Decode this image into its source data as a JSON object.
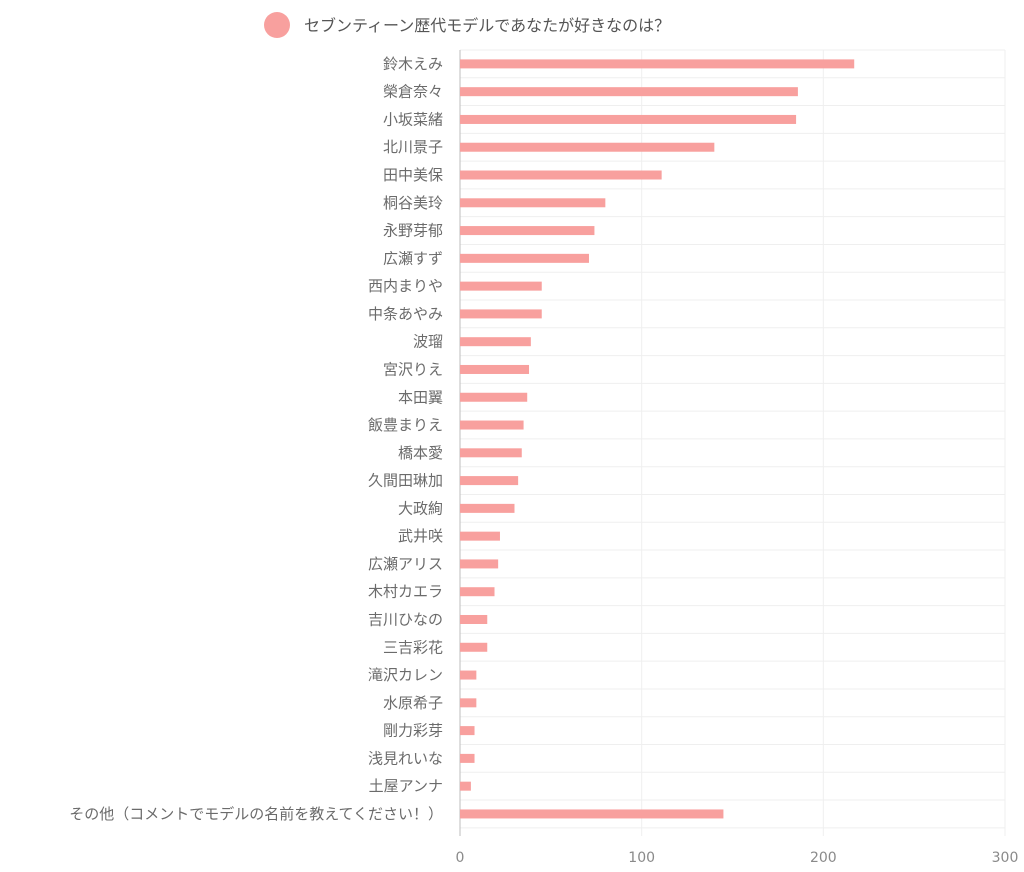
{
  "chart_data": {
    "type": "bar",
    "orientation": "horizontal",
    "series": [
      {
        "name": "セブンティーン歴代モデルであなたが好きなのは？",
        "color": "#f8a09e",
        "values": [
          217,
          186,
          185,
          140,
          111,
          80,
          74,
          71,
          45,
          45,
          39,
          38,
          37,
          35,
          34,
          32,
          30,
          22,
          21,
          19,
          15,
          15,
          9,
          9,
          8,
          8,
          6,
          145
        ]
      }
    ],
    "categories": [
      "鈴木えみ",
      "榮倉奈々",
      "小坂菜緒",
      "北川景子",
      "田中美保",
      "桐谷美玲",
      "永野芽郁",
      "広瀬すず",
      "西内まりや",
      "中条あやみ",
      "波瑠",
      "宮沢りえ",
      "本田翼",
      "飯豊まりえ",
      "橋本愛",
      "久間田琳加",
      "大政絢",
      "武井咲",
      "広瀬アリス",
      "木村カエラ",
      "吉川ひなの",
      "三吉彩花",
      "滝沢カレン",
      "水原希子",
      "剛力彩芽",
      "浅見れいな",
      "土屋アンナ",
      "その他（コメントでモデルの名前を教えてください！）"
    ],
    "xlim": [
      0,
      300
    ],
    "xticks": [
      0,
      100,
      200,
      300
    ],
    "grid": true,
    "legend_position": "top"
  }
}
